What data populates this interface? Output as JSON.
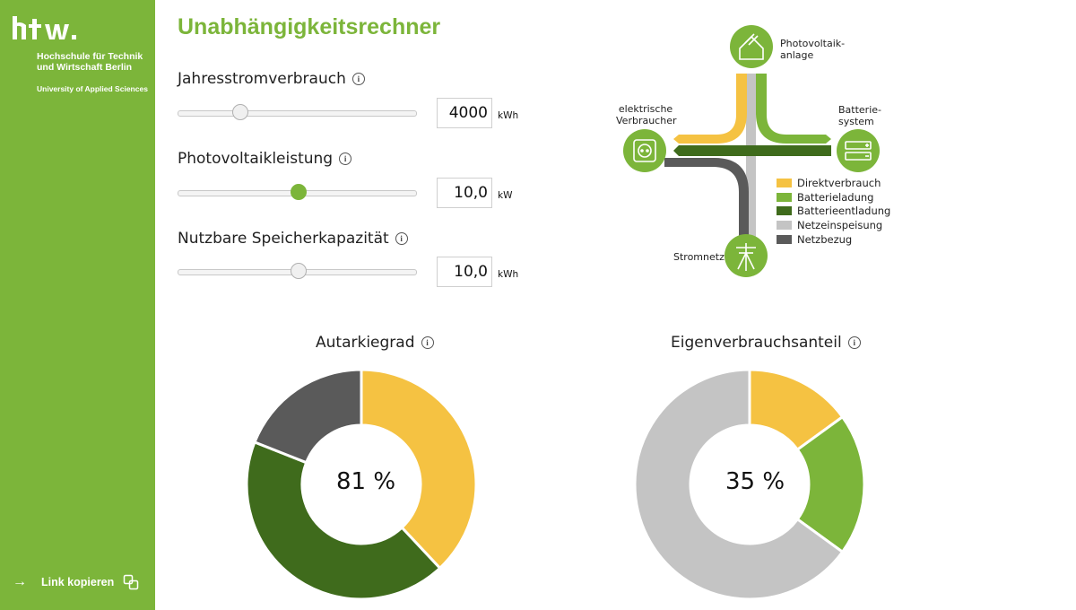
{
  "sidebar": {
    "logo_text": "htw.",
    "institution_line1": "Hochschule für Technik",
    "institution_line2": "und Wirtschaft Berlin",
    "institution_sub": "University of Applied Sciences",
    "link_label": "Link kopieren"
  },
  "header": {
    "title": "Unabhängigkeitsrechner"
  },
  "params": [
    {
      "label": "Jahresstromverbrauch",
      "value": "4000",
      "unit": "kWh",
      "slider_fraction": 0.26
    },
    {
      "label": "Photovoltaikleistung",
      "value": "10,0",
      "unit": "kW",
      "slider_fraction": 0.5
    },
    {
      "label": "Nutzbare Speicherkapazität",
      "value": "10,0",
      "unit": "kWh",
      "slider_fraction": 0.5
    }
  ],
  "diagram": {
    "pv_label_1": "Photovoltaik-",
    "pv_label_2": "anlage",
    "consumer_label_1": "elektrische",
    "consumer_label_2": "Verbraucher",
    "battery_label_1": "Batterie-",
    "battery_label_2": "system",
    "grid_label": "Stromnetz",
    "legend": [
      {
        "label": "Direktverbrauch",
        "color": "#f5c242"
      },
      {
        "label": "Batterieladung",
        "color": "#7cb53a"
      },
      {
        "label": "Batterieentladung",
        "color": "#3f6b1c"
      },
      {
        "label": "Netzeinspeisung",
        "color": "#c4c4c4"
      },
      {
        "label": "Netzbezug",
        "color": "#5a5a5a"
      }
    ]
  },
  "autarky": {
    "title": "Autarkiegrad",
    "center_text": "81 %",
    "segments": [
      {
        "name": "Direktverbrauch",
        "percent": 38,
        "color": "#f5c242"
      },
      {
        "name": "Batterieentladung",
        "percent": 43,
        "color": "#3f6b1c"
      },
      {
        "name": "Netzbezug",
        "percent": 19,
        "color": "#5a5a5a"
      }
    ]
  },
  "selfconsumption": {
    "title": "Eigenverbrauchsanteil",
    "center_text": "35 %",
    "segments": [
      {
        "name": "Direktverbrauch",
        "percent": 15,
        "color": "#f5c242"
      },
      {
        "name": "Batterieladung",
        "percent": 20,
        "color": "#7cb53a"
      },
      {
        "name": "Netzeinspeisung",
        "percent": 65,
        "color": "#c4c4c4"
      }
    ]
  },
  "colors": {
    "brand_green": "#7cb53a",
    "dark_green": "#3f6b1c",
    "yellow": "#f5c242",
    "light_gray": "#c4c4c4",
    "dark_gray": "#5a5a5a"
  }
}
